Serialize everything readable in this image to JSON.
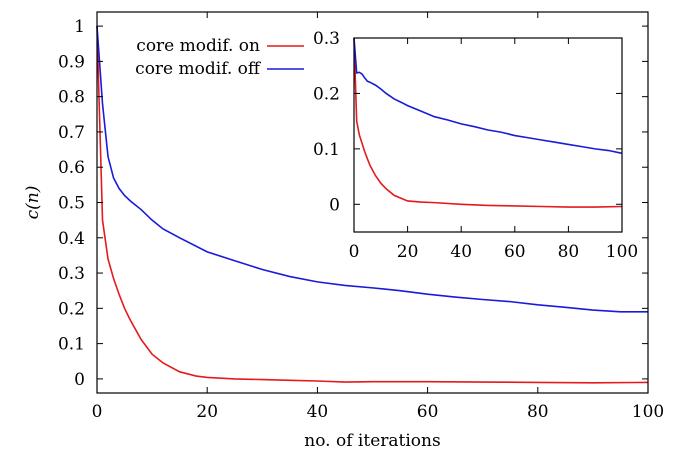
{
  "chart_data": [
    {
      "type": "line",
      "xlabel": "no. of iterations",
      "ylabel": "c(n)",
      "xlim": [
        0,
        100
      ],
      "ylim": [
        -0.04,
        1.04
      ],
      "xticks": [
        "0",
        "20",
        "40",
        "60",
        "80",
        "100"
      ],
      "yticks": [
        "0",
        "0.1",
        "0.2",
        "0.3",
        "0.4",
        "0.5",
        "0.6",
        "0.7",
        "0.8",
        "0.9",
        "1"
      ],
      "grid": false,
      "legend_position": "top-left",
      "series": [
        {
          "name": "core modif. on",
          "color": "#e41a1c",
          "x": [
            0,
            1,
            2,
            3,
            4,
            5,
            6,
            8,
            10,
            12,
            15,
            18,
            20,
            25,
            30,
            35,
            40,
            45,
            50,
            60,
            70,
            80,
            90,
            100
          ],
          "y": [
            1.0,
            0.45,
            0.34,
            0.285,
            0.24,
            0.2,
            0.168,
            0.112,
            0.07,
            0.045,
            0.02,
            0.008,
            0.004,
            0.0,
            -0.002,
            -0.004,
            -0.006,
            -0.009,
            -0.008,
            -0.008,
            -0.009,
            -0.01,
            -0.011,
            -0.01
          ]
        },
        {
          "name": "core modif. off",
          "color": "#1a1adb",
          "x": [
            0,
            1,
            2,
            3,
            4,
            5,
            6,
            8,
            10,
            12,
            15,
            20,
            25,
            30,
            35,
            40,
            45,
            50,
            55,
            60,
            65,
            70,
            75,
            80,
            85,
            90,
            95,
            100
          ],
          "y": [
            1.0,
            0.78,
            0.63,
            0.57,
            0.54,
            0.52,
            0.505,
            0.48,
            0.45,
            0.425,
            0.4,
            0.36,
            0.335,
            0.31,
            0.29,
            0.275,
            0.265,
            0.258,
            0.25,
            0.24,
            0.232,
            0.225,
            0.219,
            0.21,
            0.203,
            0.195,
            0.19,
            0.19
          ]
        }
      ]
    },
    {
      "type": "line",
      "inset": true,
      "xlim": [
        0,
        100
      ],
      "ylim": [
        -0.05,
        0.3
      ],
      "xticks": [
        "0",
        "20",
        "40",
        "60",
        "80",
        "100"
      ],
      "yticks": [
        "0",
        "0.1",
        "0.2",
        "0.3"
      ],
      "grid": false,
      "series": [
        {
          "color": "#e41a1c",
          "x": [
            0,
            1,
            2,
            3,
            4,
            5,
            6,
            8,
            10,
            12,
            15,
            18,
            20,
            25,
            30,
            40,
            50,
            60,
            70,
            80,
            90,
            100
          ],
          "y": [
            0.3,
            0.15,
            0.125,
            0.11,
            0.095,
            0.082,
            0.07,
            0.052,
            0.038,
            0.028,
            0.016,
            0.01,
            0.006,
            0.004,
            0.003,
            0.0,
            -0.002,
            -0.003,
            -0.004,
            -0.005,
            -0.005,
            -0.004
          ]
        },
        {
          "color": "#1a1adb",
          "x": [
            0,
            1,
            2,
            3,
            4,
            5,
            6,
            8,
            10,
            12,
            15,
            18,
            20,
            25,
            30,
            35,
            40,
            45,
            50,
            55,
            60,
            65,
            70,
            75,
            80,
            85,
            90,
            95,
            100
          ],
          "y": [
            0.3,
            0.237,
            0.238,
            0.235,
            0.228,
            0.222,
            0.22,
            0.215,
            0.208,
            0.2,
            0.19,
            0.183,
            0.178,
            0.168,
            0.158,
            0.152,
            0.145,
            0.14,
            0.134,
            0.13,
            0.124,
            0.12,
            0.116,
            0.112,
            0.108,
            0.104,
            0.1,
            0.097,
            0.092
          ]
        }
      ]
    }
  ]
}
